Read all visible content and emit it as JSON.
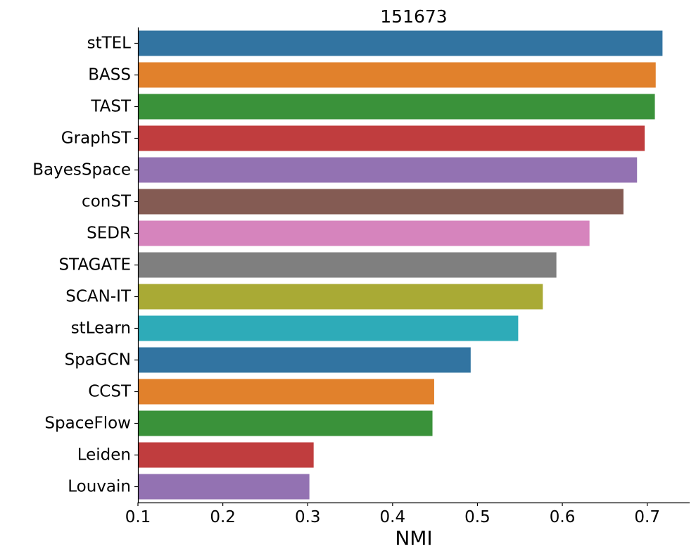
{
  "chart_data": {
    "type": "bar",
    "orientation": "horizontal",
    "title": "151673",
    "xlabel": "NMI",
    "ylabel": "",
    "xlim": [
      0.1,
      0.75
    ],
    "xticks": [
      0.1,
      0.2,
      0.3,
      0.4,
      0.5,
      0.6,
      0.7
    ],
    "xtick_labels": [
      "0.1",
      "0.2",
      "0.3",
      "0.4",
      "0.5",
      "0.6",
      "0.7"
    ],
    "grid": false,
    "legend": false,
    "categories": [
      "stTEL",
      "BASS",
      "TAST",
      "GraphST",
      "BayesSpace",
      "conST",
      "SEDR",
      "STAGATE",
      "SCAN-IT",
      "stLearn",
      "SpaGCN",
      "CCST",
      "SpaceFlow",
      "Leiden",
      "Louvain"
    ],
    "values": [
      0.718,
      0.71,
      0.709,
      0.697,
      0.688,
      0.672,
      0.632,
      0.593,
      0.577,
      0.548,
      0.492,
      0.449,
      0.447,
      0.307,
      0.302
    ],
    "colors": [
      "#3274a1",
      "#e1812c",
      "#3a923a",
      "#c03d3e",
      "#9372b2",
      "#845b53",
      "#d684bd",
      "#7f7f7f",
      "#a9aa35",
      "#2eabb8",
      "#3274a1",
      "#e1812c",
      "#3a923a",
      "#c03d3e",
      "#9372b2"
    ]
  }
}
